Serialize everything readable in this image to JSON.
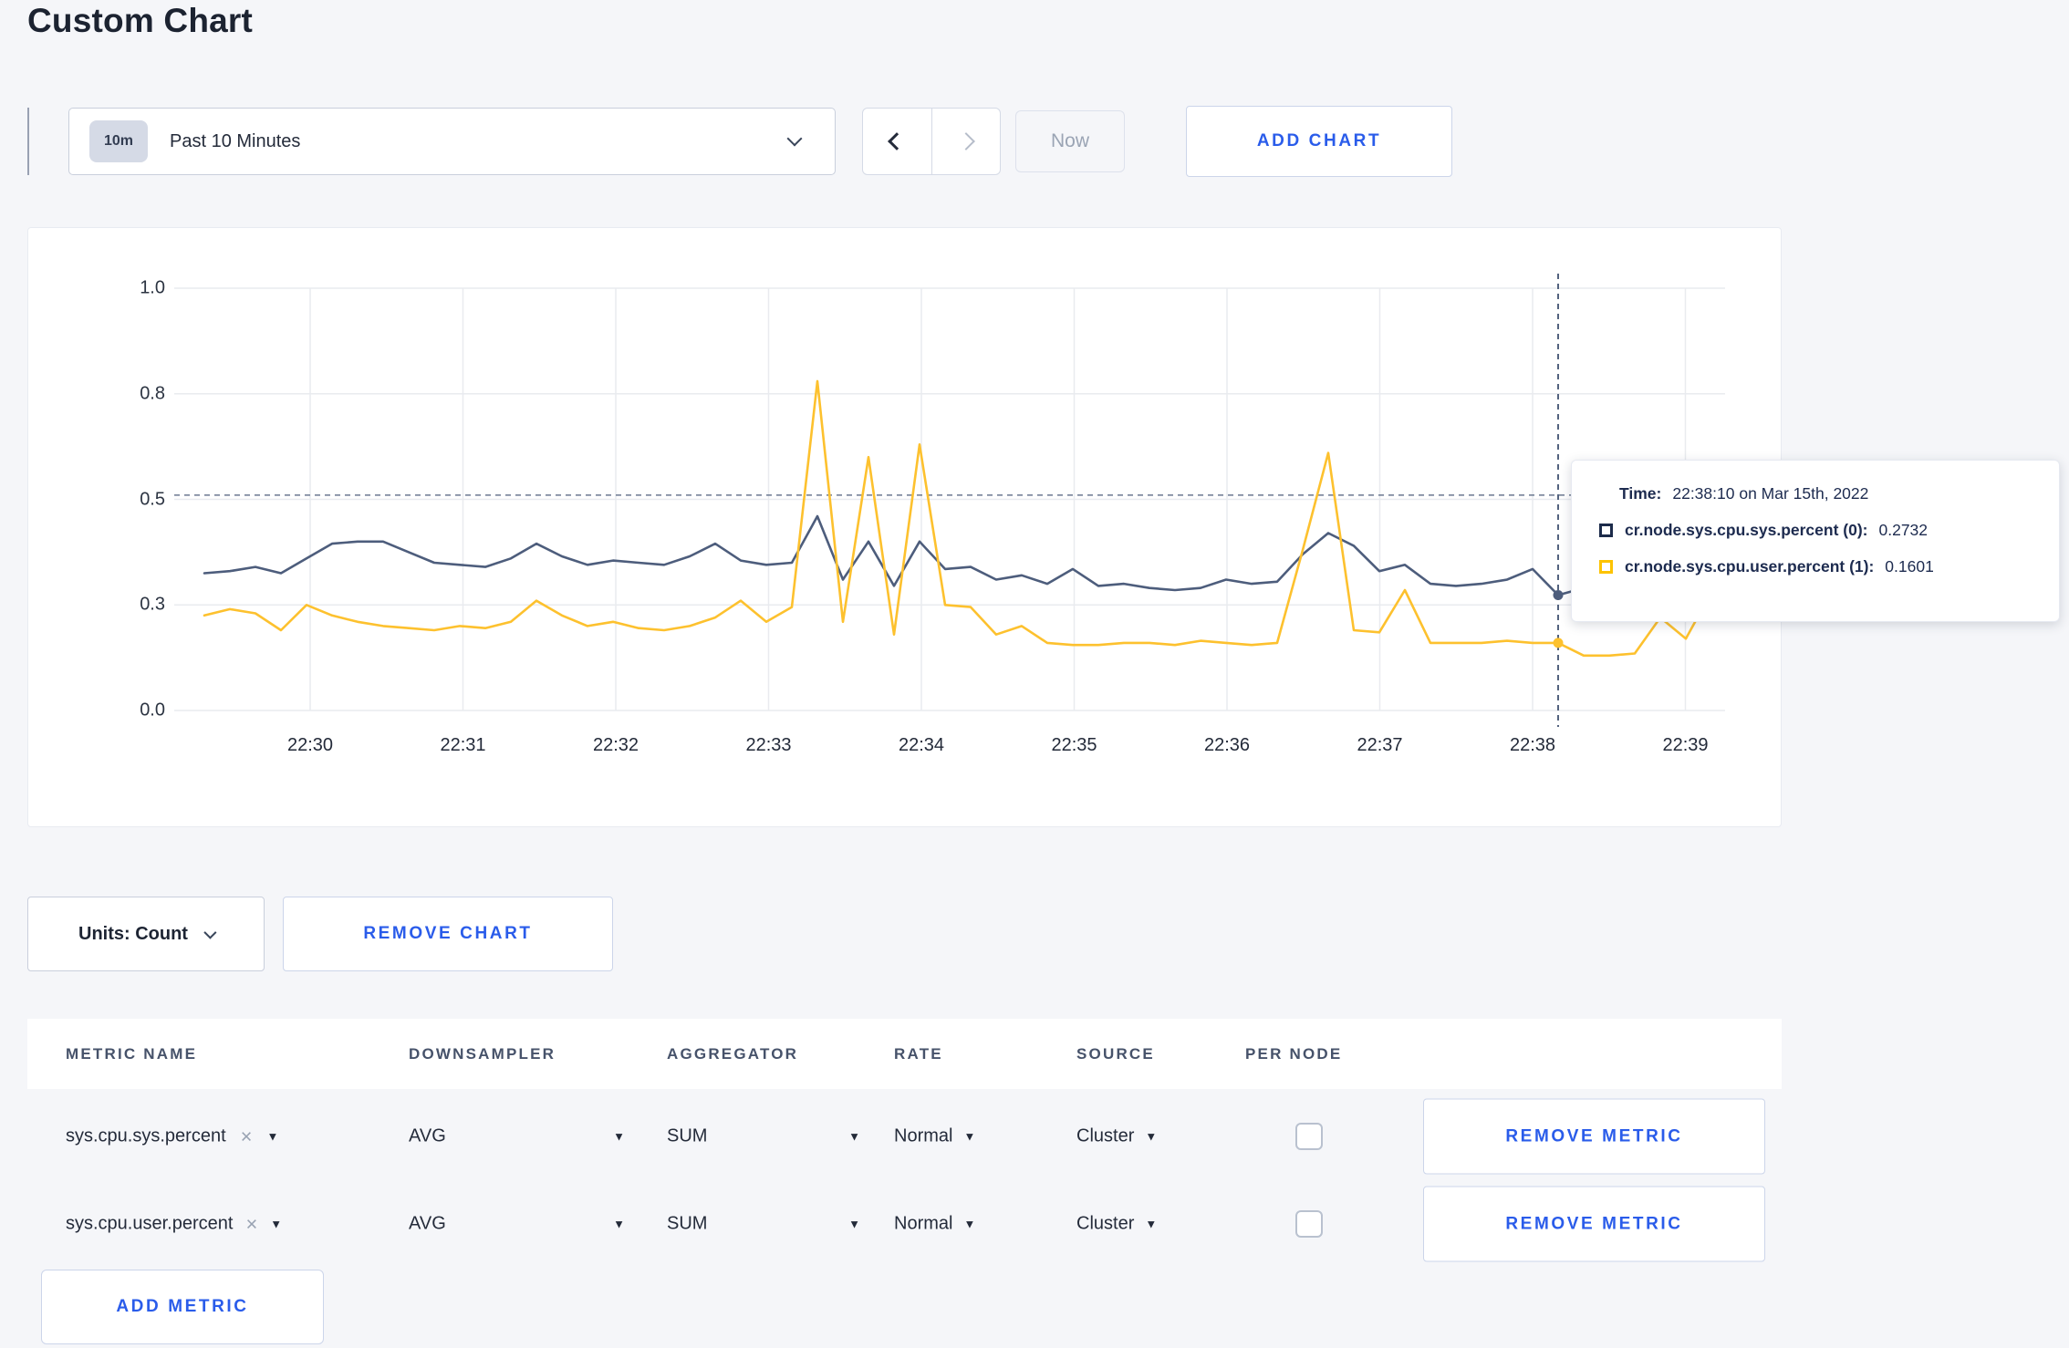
{
  "page": {
    "title": "Custom Chart"
  },
  "toolbar": {
    "timescale": {
      "badge": "10m",
      "label": "Past 10 Minutes"
    },
    "now_label": "Now",
    "add_chart_label": "ADD CHART"
  },
  "units": {
    "label": "Units: Count"
  },
  "actions": {
    "remove_chart_label": "REMOVE CHART"
  },
  "chart_data": {
    "type": "line",
    "title": "",
    "ylim": [
      0,
      1
    ],
    "grid": true,
    "legend_position": "tooltip-only",
    "y_ticks": [
      {
        "v": 0.0,
        "label": "0.0"
      },
      {
        "v": 0.25,
        "label": "0.3"
      },
      {
        "v": 0.5,
        "label": "0.5"
      },
      {
        "v": 0.75,
        "label": "0.8"
      },
      {
        "v": 1.0,
        "label": "1.0"
      }
    ],
    "x_tick_labels": [
      "22:30",
      "22:31",
      "22:32",
      "22:33",
      "22:34",
      "22:35",
      "22:36",
      "22:37",
      "22:38",
      "22:39"
    ],
    "x_start_time": "22:29:20",
    "x_interval_seconds": 10,
    "series": [
      {
        "name": "cr.node.sys.cpu.sys.percent",
        "color": "#4d5d7c",
        "values": [
          0.325,
          0.33,
          0.34,
          0.325,
          0.36,
          0.395,
          0.4,
          0.4,
          0.375,
          0.35,
          0.345,
          0.34,
          0.36,
          0.395,
          0.365,
          0.345,
          0.355,
          0.35,
          0.345,
          0.365,
          0.395,
          0.355,
          0.345,
          0.35,
          0.46,
          0.31,
          0.4,
          0.295,
          0.4,
          0.335,
          0.34,
          0.31,
          0.32,
          0.3,
          0.335,
          0.295,
          0.3,
          0.29,
          0.285,
          0.29,
          0.31,
          0.3,
          0.305,
          0.37,
          0.42,
          0.39,
          0.33,
          0.345,
          0.3,
          0.295,
          0.3,
          0.31,
          0.335,
          0.2732,
          0.29,
          0.3,
          0.31,
          0.3,
          0.295,
          0.305
        ]
      },
      {
        "name": "cr.node.sys.cpu.user.percent",
        "color": "#fdc12e",
        "values": [
          0.225,
          0.24,
          0.23,
          0.19,
          0.25,
          0.225,
          0.21,
          0.2,
          0.195,
          0.19,
          0.2,
          0.195,
          0.21,
          0.26,
          0.225,
          0.2,
          0.21,
          0.195,
          0.19,
          0.2,
          0.22,
          0.26,
          0.21,
          0.245,
          0.78,
          0.21,
          0.6,
          0.18,
          0.63,
          0.25,
          0.245,
          0.18,
          0.2,
          0.16,
          0.155,
          0.155,
          0.16,
          0.16,
          0.155,
          0.165,
          0.16,
          0.155,
          0.16,
          0.38,
          0.61,
          0.19,
          0.185,
          0.285,
          0.16,
          0.16,
          0.16,
          0.165,
          0.16,
          0.1601,
          0.13,
          0.13,
          0.135,
          0.22,
          0.17,
          0.28
        ]
      }
    ],
    "crosshair": {
      "index": 53,
      "time": "22:38:10",
      "hline_value": 0.51
    },
    "tooltip": {
      "time_label": "Time:",
      "time_value": "22:38:10 on Mar 15th, 2022",
      "entries": [
        {
          "label": "cr.node.sys.cpu.sys.percent (0):",
          "value": "0.2732",
          "color": "#1c2b4a"
        },
        {
          "label": "cr.node.sys.cpu.user.percent (1):",
          "value": "0.1601",
          "color": "#fdc300"
        }
      ]
    }
  },
  "metrics_table": {
    "headers": [
      "METRIC NAME",
      "DOWNSAMPLER",
      "AGGREGATOR",
      "RATE",
      "SOURCE",
      "PER NODE"
    ],
    "rows": [
      {
        "metric": "sys.cpu.sys.percent",
        "downsampler": "AVG",
        "aggregator": "SUM",
        "rate": "Normal",
        "source": "Cluster",
        "per_node_checked": false,
        "remove_label": "REMOVE METRIC"
      },
      {
        "metric": "sys.cpu.user.percent",
        "downsampler": "AVG",
        "aggregator": "SUM",
        "rate": "Normal",
        "source": "Cluster",
        "per_node_checked": false,
        "remove_label": "REMOVE METRIC"
      }
    ],
    "add_metric_label": "ADD METRIC"
  }
}
